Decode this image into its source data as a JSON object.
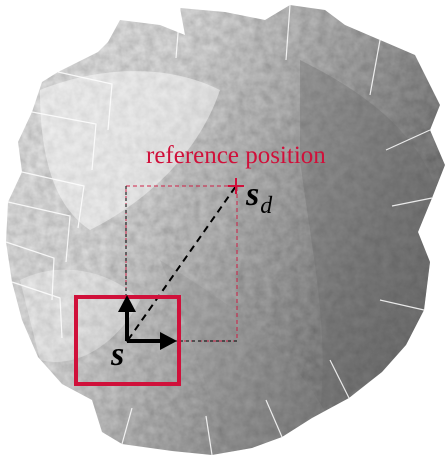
{
  "diagram": {
    "reference_label": "reference position",
    "desired_symbol": "s",
    "desired_subscript": "d",
    "current_symbol": "s",
    "colors": {
      "accent": "#d0103a",
      "arrow": "#000000",
      "dashed_line": "#000000",
      "mosaic_dark": "#6f6f6f",
      "mosaic_light": "#f4f4f4"
    }
  }
}
